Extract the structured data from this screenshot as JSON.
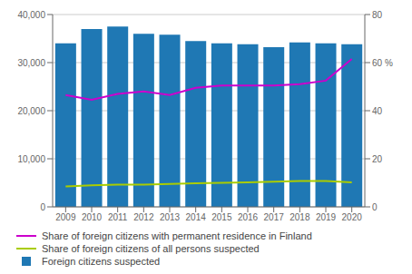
{
  "chart_data": {
    "type": "bar",
    "categories": [
      "2009",
      "2010",
      "2011",
      "2012",
      "2013",
      "2014",
      "2015",
      "2016",
      "2017",
      "2018",
      "2019",
      "2020"
    ],
    "series": [
      {
        "name": "Share of foreign citizens with permanent residence in Finland",
        "type": "line",
        "axis": "y2",
        "color": "#cc00cc",
        "values": [
          46.5,
          44.5,
          47.0,
          48.0,
          46.5,
          49.5,
          50.5,
          50.5,
          50.5,
          51.0,
          52.5,
          61.5
        ]
      },
      {
        "name": "Share of foreign citizens of all persons suspected",
        "type": "line",
        "axis": "y2",
        "color": "#aacc00",
        "values": [
          8.5,
          9.0,
          9.2,
          9.2,
          9.5,
          9.8,
          10.0,
          10.2,
          10.5,
          10.8,
          10.8,
          10.2
        ]
      },
      {
        "name": "Foreign citizens suspected",
        "type": "bar",
        "color": "#1f78b4",
        "values": [
          34000,
          37000,
          37500,
          36000,
          35800,
          34500,
          34000,
          33800,
          33200,
          34200,
          34000,
          33800
        ]
      }
    ],
    "ylim": [
      0,
      40000
    ],
    "yticks": [
      0,
      {
        "value": 10000,
        "label": "10,000"
      },
      {
        "value": 20000,
        "label": "20,000"
      },
      {
        "value": 30000,
        "label": "30,000"
      },
      {
        "value": 40000,
        "label": "40,000"
      }
    ],
    "y2lim": [
      0,
      80
    ],
    "y2ticks": [
      0,
      20,
      40,
      {
        "value": 60,
        "label": "60 %"
      },
      80
    ],
    "grid": true,
    "legend": "lower left"
  }
}
